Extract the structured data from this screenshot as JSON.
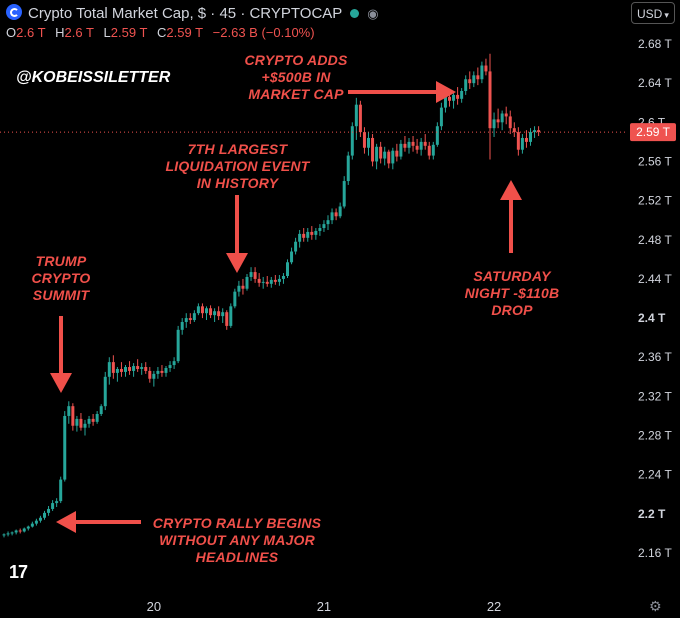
{
  "header": {
    "title": "Crypto Total Market Cap, $ · 45 · CRYPTOCAP",
    "open_label": "O",
    "open": "2.6 T",
    "high_label": "H",
    "high": "2.6 T",
    "low_label": "L",
    "low": "2.59 T",
    "close_label": "C",
    "close": "2.59 T",
    "change": "−2.63 B (−0.10%)",
    "currency": "USD"
  },
  "watermark": "@KOBEISSILETTER",
  "annotations": {
    "summit": "TRUMP\nCRYPTO\nSUMMIT",
    "rally": "CRYPTO RALLY BEGINS\nWITHOUT ANY MAJOR\nHEADLINES",
    "liquidation": "7TH LARGEST\nLIQUIDATION EVENT\nIN HISTORY",
    "adds": "CRYPTO ADDS\n+$500B IN\nMARKET CAP",
    "saturday": "SATURDAY\nNIGHT -$110B\nDROP"
  },
  "branding": {
    "logo_text": "17"
  },
  "colors": {
    "up": "#26a69a",
    "down": "#ef5350",
    "accent": "#f0504a",
    "background": "#000000"
  },
  "chart_data": {
    "type": "candlestick",
    "y_unit": "T",
    "ylim": [
      2.14,
      2.7
    ],
    "yticks": [
      "2.68 T",
      "2.64 T",
      "2.6 T",
      "2.56 T",
      "2.52 T",
      "2.48 T",
      "2.44 T",
      "2.4 T",
      "2.36 T",
      "2.32 T",
      "2.28 T",
      "2.24 T",
      "2.2 T",
      "2.16 T"
    ],
    "ytick_values": [
      2.68,
      2.64,
      2.6,
      2.56,
      2.52,
      2.48,
      2.44,
      2.4,
      2.36,
      2.32,
      2.28,
      2.24,
      2.2,
      2.16
    ],
    "xticks": [
      "20",
      "21",
      "22"
    ],
    "xtick_index": [
      37,
      79,
      121
    ],
    "last_price": 2.59,
    "last_price_label": "2.59 T",
    "candles": [
      [
        2.178,
        2.18,
        2.176,
        2.179
      ],
      [
        2.179,
        2.182,
        2.177,
        2.18
      ],
      [
        2.18,
        2.182,
        2.178,
        2.181
      ],
      [
        2.181,
        2.184,
        2.179,
        2.183
      ],
      [
        2.183,
        2.185,
        2.18,
        2.182
      ],
      [
        2.182,
        2.186,
        2.181,
        2.185
      ],
      [
        2.185,
        2.188,
        2.183,
        2.187
      ],
      [
        2.187,
        2.192,
        2.186,
        2.19
      ],
      [
        2.19,
        2.195,
        2.188,
        2.193
      ],
      [
        2.193,
        2.198,
        2.191,
        2.196
      ],
      [
        2.196,
        2.203,
        2.194,
        2.201
      ],
      [
        2.201,
        2.208,
        2.198,
        2.205
      ],
      [
        2.205,
        2.214,
        2.203,
        2.211
      ],
      [
        2.211,
        2.216,
        2.207,
        2.213
      ],
      [
        2.213,
        2.238,
        2.211,
        2.235
      ],
      [
        2.235,
        2.305,
        2.233,
        2.3
      ],
      [
        2.3,
        2.315,
        2.292,
        2.31
      ],
      [
        2.31,
        2.313,
        2.285,
        2.29
      ],
      [
        2.29,
        2.3,
        2.284,
        2.297
      ],
      [
        2.297,
        2.303,
        2.285,
        2.288
      ],
      [
        2.288,
        2.296,
        2.28,
        2.292
      ],
      [
        2.292,
        2.3,
        2.288,
        2.297
      ],
      [
        2.297,
        2.302,
        2.29,
        2.294
      ],
      [
        2.294,
        2.305,
        2.292,
        2.302
      ],
      [
        2.302,
        2.312,
        2.3,
        2.31
      ],
      [
        2.31,
        2.345,
        2.306,
        2.34
      ],
      [
        2.34,
        2.36,
        2.332,
        2.355
      ],
      [
        2.355,
        2.362,
        2.338,
        2.344
      ],
      [
        2.344,
        2.35,
        2.335,
        2.348
      ],
      [
        2.348,
        2.355,
        2.34,
        2.345
      ],
      [
        2.345,
        2.352,
        2.34,
        2.35
      ],
      [
        2.35,
        2.356,
        2.342,
        2.346
      ],
      [
        2.346,
        2.354,
        2.34,
        2.351
      ],
      [
        2.351,
        2.358,
        2.345,
        2.348
      ],
      [
        2.348,
        2.354,
        2.342,
        2.35
      ],
      [
        2.35,
        2.355,
        2.343,
        2.346
      ],
      [
        2.346,
        2.35,
        2.334,
        2.338
      ],
      [
        2.338,
        2.346,
        2.33,
        2.343
      ],
      [
        2.343,
        2.35,
        2.338,
        2.346
      ],
      [
        2.346,
        2.352,
        2.34,
        2.344
      ],
      [
        2.344,
        2.351,
        2.34,
        2.349
      ],
      [
        2.349,
        2.356,
        2.345,
        2.352
      ],
      [
        2.352,
        2.36,
        2.348,
        2.356
      ],
      [
        2.356,
        2.392,
        2.354,
        2.388
      ],
      [
        2.388,
        2.4,
        2.383,
        2.396
      ],
      [
        2.396,
        2.405,
        2.39,
        2.4
      ],
      [
        2.4,
        2.405,
        2.394,
        2.398
      ],
      [
        2.398,
        2.408,
        2.396,
        2.405
      ],
      [
        2.405,
        2.415,
        2.403,
        2.412
      ],
      [
        2.412,
        2.415,
        2.4,
        2.405
      ],
      [
        2.405,
        2.412,
        2.398,
        2.41
      ],
      [
        2.41,
        2.413,
        2.4,
        2.403
      ],
      [
        2.403,
        2.41,
        2.396,
        2.407
      ],
      [
        2.407,
        2.412,
        2.398,
        2.402
      ],
      [
        2.402,
        2.41,
        2.395,
        2.406
      ],
      [
        2.406,
        2.408,
        2.388,
        2.392
      ],
      [
        2.392,
        2.415,
        2.39,
        2.412
      ],
      [
        2.412,
        2.43,
        2.41,
        2.427
      ],
      [
        2.427,
        2.438,
        2.422,
        2.433
      ],
      [
        2.433,
        2.44,
        2.424,
        2.43
      ],
      [
        2.43,
        2.445,
        2.428,
        2.442
      ],
      [
        2.442,
        2.452,
        2.438,
        2.447
      ],
      [
        2.447,
        2.452,
        2.436,
        2.44
      ],
      [
        2.44,
        2.446,
        2.432,
        2.436
      ],
      [
        2.436,
        2.442,
        2.43,
        2.437
      ],
      [
        2.437,
        2.443,
        2.432,
        2.435
      ],
      [
        2.435,
        2.442,
        2.431,
        2.439
      ],
      [
        2.439,
        2.444,
        2.434,
        2.437
      ],
      [
        2.437,
        2.444,
        2.433,
        2.44
      ],
      [
        2.44,
        2.446,
        2.435,
        2.443
      ],
      [
        2.443,
        2.46,
        2.441,
        2.457
      ],
      [
        2.457,
        2.472,
        2.455,
        2.468
      ],
      [
        2.468,
        2.482,
        2.465,
        2.478
      ],
      [
        2.478,
        2.49,
        2.472,
        2.486
      ],
      [
        2.486,
        2.492,
        2.478,
        2.482
      ],
      [
        2.482,
        2.492,
        2.478,
        2.488
      ],
      [
        2.488,
        2.494,
        2.48,
        2.485
      ],
      [
        2.485,
        2.492,
        2.48,
        2.489
      ],
      [
        2.489,
        2.496,
        2.484,
        2.492
      ],
      [
        2.492,
        2.5,
        2.488,
        2.496
      ],
      [
        2.496,
        2.505,
        2.49,
        2.5
      ],
      [
        2.5,
        2.512,
        2.496,
        2.508
      ],
      [
        2.508,
        2.512,
        2.5,
        2.504
      ],
      [
        2.504,
        2.518,
        2.502,
        2.514
      ],
      [
        2.514,
        2.545,
        2.512,
        2.54
      ],
      [
        2.54,
        2.57,
        2.536,
        2.566
      ],
      [
        2.566,
        2.6,
        2.562,
        2.596
      ],
      [
        2.596,
        2.625,
        2.582,
        2.618
      ],
      [
        2.618,
        2.622,
        2.585,
        2.59
      ],
      [
        2.59,
        2.595,
        2.568,
        2.574
      ],
      [
        2.574,
        2.59,
        2.566,
        2.584
      ],
      [
        2.584,
        2.588,
        2.555,
        2.56
      ],
      [
        2.56,
        2.578,
        2.552,
        2.575
      ],
      [
        2.575,
        2.58,
        2.558,
        2.563
      ],
      [
        2.563,
        2.575,
        2.556,
        2.57
      ],
      [
        2.57,
        2.572,
        2.553,
        2.558
      ],
      [
        2.558,
        2.574,
        2.552,
        2.571
      ],
      [
        2.571,
        2.578,
        2.56,
        2.565
      ],
      [
        2.565,
        2.582,
        2.562,
        2.578
      ],
      [
        2.578,
        2.586,
        2.57,
        2.574
      ],
      [
        2.574,
        2.584,
        2.568,
        2.58
      ],
      [
        2.58,
        2.586,
        2.57,
        2.576
      ],
      [
        2.576,
        2.583,
        2.568,
        2.572
      ],
      [
        2.572,
        2.584,
        2.566,
        2.58
      ],
      [
        2.58,
        2.588,
        2.572,
        2.576
      ],
      [
        2.576,
        2.58,
        2.562,
        2.566
      ],
      [
        2.566,
        2.58,
        2.562,
        2.577
      ],
      [
        2.577,
        2.6,
        2.575,
        2.596
      ],
      [
        2.596,
        2.62,
        2.592,
        2.615
      ],
      [
        2.615,
        2.63,
        2.61,
        2.626
      ],
      [
        2.626,
        2.634,
        2.616,
        2.622
      ],
      [
        2.622,
        2.632,
        2.614,
        2.628
      ],
      [
        2.628,
        2.636,
        2.618,
        2.624
      ],
      [
        2.624,
        2.635,
        2.62,
        2.632
      ],
      [
        2.632,
        2.648,
        2.628,
        2.644
      ],
      [
        2.644,
        2.652,
        2.634,
        2.64
      ],
      [
        2.64,
        2.652,
        2.636,
        2.648
      ],
      [
        2.648,
        2.656,
        2.638,
        2.644
      ],
      [
        2.644,
        2.662,
        2.64,
        2.658
      ],
      [
        2.658,
        2.665,
        2.648,
        2.652
      ],
      [
        2.652,
        2.67,
        2.562,
        2.594
      ],
      [
        2.594,
        2.61,
        2.585,
        2.603
      ],
      [
        2.603,
        2.614,
        2.594,
        2.6
      ],
      [
        2.6,
        2.612,
        2.592,
        2.609
      ],
      [
        2.609,
        2.616,
        2.598,
        2.606
      ],
      [
        2.606,
        2.612,
        2.588,
        2.594
      ],
      [
        2.594,
        2.6,
        2.585,
        2.59
      ],
      [
        2.59,
        2.595,
        2.566,
        2.572
      ],
      [
        2.572,
        2.588,
        2.568,
        2.584
      ],
      [
        2.584,
        2.592,
        2.574,
        2.58
      ],
      [
        2.58,
        2.594,
        2.576,
        2.59
      ],
      [
        2.59,
        2.596,
        2.584,
        2.592
      ],
      [
        2.592,
        2.596,
        2.586,
        2.59
      ]
    ]
  }
}
